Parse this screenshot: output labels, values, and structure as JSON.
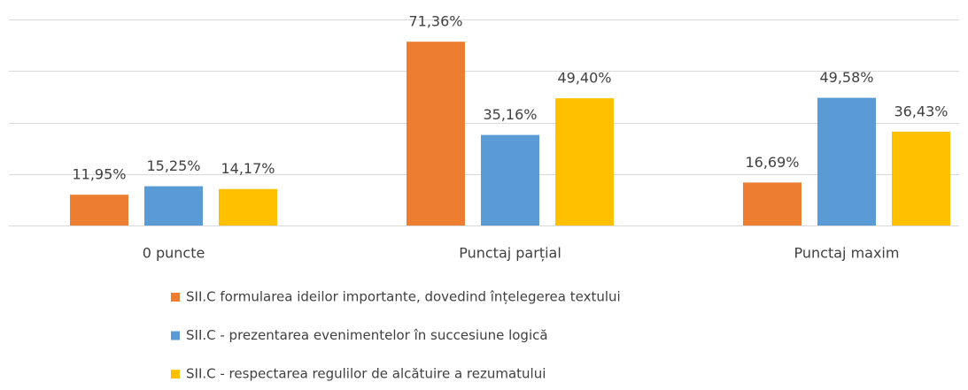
{
  "chart_data": {
    "type": "bar",
    "categories": [
      "0 puncte",
      "Punctaj parțial",
      "Punctaj maxim"
    ],
    "series": [
      {
        "name": "SII.C formularea ideilor importante, dovedind înțelegerea textului",
        "color": "#ED7D31",
        "values": [
          11.95,
          71.36,
          16.69
        ],
        "value_labels": [
          "11,95%",
          "71,36%",
          "16,69%"
        ]
      },
      {
        "name": "SII.C - prezentarea evenimentelor în succesiune logică",
        "color": "#5B9BD5",
        "values": [
          15.25,
          35.16,
          49.58
        ],
        "value_labels": [
          "15,25%",
          "35,16%",
          "49,58%"
        ]
      },
      {
        "name": "SII.C - respectarea regulilor de alcătuire a rezumatului",
        "color": "#FFC000",
        "values": [
          14.17,
          49.4,
          36.43
        ],
        "value_labels": [
          "14,17%",
          "49,40%",
          "36,43%"
        ]
      }
    ],
    "ylim": [
      0,
      80
    ],
    "yticks": [
      0,
      20,
      40,
      60,
      80
    ],
    "grid": true,
    "legend": "bottom"
  }
}
